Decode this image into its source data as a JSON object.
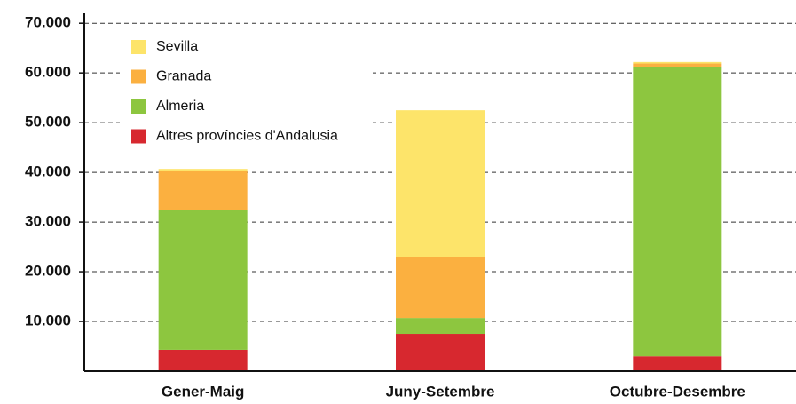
{
  "chart_data": {
    "type": "stacked_bar",
    "categories": [
      "Gener-Maig",
      "Juny-Setembre",
      "Octubre-Desembre"
    ],
    "series": [
      {
        "name": "Sevilla",
        "color": "#fde46a",
        "values": [
          500,
          29600,
          300
        ]
      },
      {
        "name": "Granada",
        "color": "#fbb040",
        "values": [
          7700,
          12200,
          700
        ]
      },
      {
        "name": "Almeria",
        "color": "#8dc63f",
        "values": [
          28200,
          3200,
          58200
        ]
      },
      {
        "name": "Altres províncies d'Andalusia",
        "color": "#d7282f",
        "values": [
          4300,
          7500,
          3000
        ]
      }
    ],
    "ylim": [
      0,
      72000
    ],
    "yticks": [
      {
        "value": 10000,
        "label": "10.000"
      },
      {
        "value": 20000,
        "label": "20.000"
      },
      {
        "value": 30000,
        "label": "30.000"
      },
      {
        "value": 40000,
        "label": "40.000"
      },
      {
        "value": 50000,
        "label": "50.000"
      },
      {
        "value": 60000,
        "label": "60.000"
      },
      {
        "value": 70000,
        "label": "70.000"
      }
    ],
    "grid": true,
    "legend": "top-left"
  }
}
